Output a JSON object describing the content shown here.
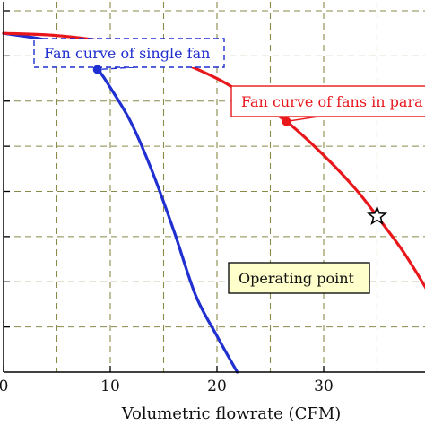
{
  "chart_data": {
    "type": "line",
    "xlabel": "Volumetric flowrate (CFM)",
    "ylabel": "",
    "xlim": [
      0,
      40
    ],
    "ylim": [
      0,
      8
    ],
    "x_ticks": [
      {
        "value": 0,
        "label": "0"
      },
      {
        "value": 10,
        "label": "10"
      },
      {
        "value": 20,
        "label": "20"
      },
      {
        "value": 30,
        "label": "30"
      }
    ],
    "grid": true,
    "grid_style": "dashed",
    "series": [
      {
        "color": "#1f2fd0",
        "x": [
          0,
          4,
          6,
          7.5,
          8.8,
          10,
          12,
          14,
          16,
          18,
          20,
          21.9
        ],
        "y": [
          7.5,
          7.35,
          7.15,
          6.9,
          6.7,
          6.3,
          5.5,
          4.4,
          3.1,
          1.7,
          0.8,
          0
        ]
      },
      {
        "color": "#e8171c",
        "x": [
          0,
          5,
          10,
          15,
          20,
          23.5,
          26.5,
          30,
          33,
          35,
          37.5,
          40
        ],
        "y": [
          7.5,
          7.45,
          7.3,
          7.0,
          6.5,
          6.0,
          5.55,
          4.8,
          4.05,
          3.45,
          2.65,
          1.7
        ]
      }
    ],
    "annotations": [
      {
        "text": "Fan curve of single fan",
        "color": "#1f2fd0",
        "box": "dashed",
        "series": 0,
        "x": 8.8,
        "y": 6.7,
        "marker": "dot"
      },
      {
        "text": "Fan curve of fans in para",
        "color": "#e8171c",
        "box": "solid",
        "series": 1,
        "x": 26.5,
        "y": 5.55,
        "marker": "dot"
      },
      {
        "text": "Operating point",
        "color": "#111111",
        "box": "solid",
        "fill": "#ffffcc",
        "series": 1,
        "x": 35,
        "y": 3.45,
        "marker": "star"
      }
    ]
  }
}
